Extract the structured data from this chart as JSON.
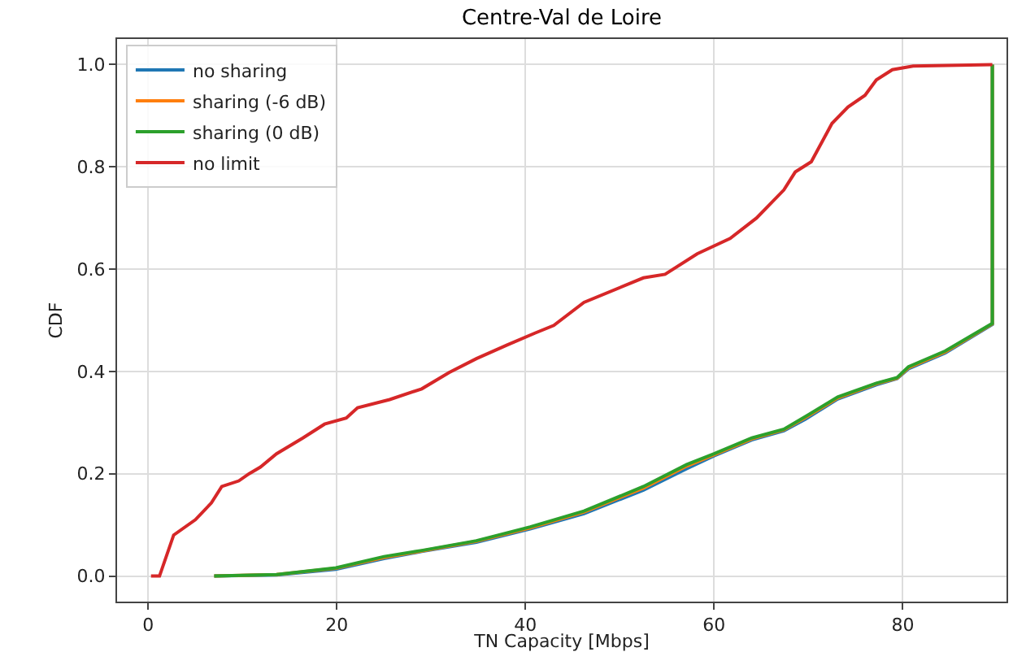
{
  "chart_data": {
    "type": "line",
    "title": "Centre-Val de Loire",
    "xlabel": "TN Capacity [Mbps]",
    "ylabel": "CDF",
    "xlim": [
      -3.3,
      91
    ],
    "ylim": [
      -0.05,
      1.05
    ],
    "xticks": [
      0,
      20,
      40,
      60,
      80
    ],
    "yticks": [
      {
        "value": 0,
        "label": "0.0"
      },
      {
        "value": 0.2,
        "label": "0.2"
      },
      {
        "value": 0.4,
        "label": "0.4"
      },
      {
        "value": 0.6,
        "label": "0.6"
      },
      {
        "value": 0.8,
        "label": "0.8"
      },
      {
        "value": 1,
        "label": "1.0"
      }
    ],
    "grid": true,
    "legend": "top left",
    "marker": "none",
    "line_style": "solid",
    "series": [
      {
        "name": "no sharing",
        "color": "#1f77b4",
        "x": [
          7,
          13.6,
          19.9,
          25,
          29,
          34.8,
          40.5,
          46.2,
          52.5,
          57.1,
          60,
          64,
          67.4,
          69.7,
          73.1,
          77.2,
          79.4,
          80.6,
          84.5,
          89.5,
          89.5
        ],
        "values": [
          0,
          0.002,
          0.013,
          0.034,
          0.048,
          0.066,
          0.092,
          0.122,
          0.168,
          0.21,
          0.235,
          0.266,
          0.284,
          0.307,
          0.346,
          0.374,
          0.386,
          0.405,
          0.436,
          0.492,
          1
        ]
      },
      {
        "name": "sharing (-6 dB)",
        "color": "#ff7f0e",
        "x": [
          7,
          13.6,
          19.9,
          25,
          29,
          34.8,
          40.5,
          46.2,
          52.5,
          57.1,
          60,
          64,
          67.4,
          69.7,
          73.1,
          77.2,
          79.4,
          80.6,
          84.5,
          89.5,
          89.5
        ],
        "values": [
          0,
          0.003,
          0.015,
          0.036,
          0.049,
          0.068,
          0.094,
          0.125,
          0.172,
          0.215,
          0.237,
          0.268,
          0.286,
          0.31,
          0.348,
          0.376,
          0.387,
          0.407,
          0.438,
          0.493,
          1
        ]
      },
      {
        "name": "sharing (0 dB)",
        "color": "#2ca02c",
        "x": [
          7,
          13.6,
          19.9,
          25,
          29,
          34.8,
          40.5,
          46.2,
          52.5,
          57.1,
          60,
          64,
          67.4,
          69.7,
          73.1,
          77.2,
          79.4,
          80.6,
          84.5,
          89.5,
          89.5
        ],
        "values": [
          0,
          0.003,
          0.016,
          0.038,
          0.05,
          0.069,
          0.096,
          0.127,
          0.175,
          0.218,
          0.239,
          0.27,
          0.287,
          0.312,
          0.35,
          0.377,
          0.388,
          0.409,
          0.44,
          0.494,
          1
        ]
      },
      {
        "name": "no limit",
        "color": "#d62728",
        "x": [
          0.3,
          1.2,
          2.7,
          5,
          6.7,
          7.8,
          9.6,
          10.7,
          11.9,
          13.6,
          16.4,
          18.7,
          21,
          22.2,
          25.6,
          29,
          31.9,
          34.8,
          38.1,
          41,
          43,
          46.2,
          52.5,
          54.8,
          58.2,
          61.7,
          64.5,
          67.4,
          68.6,
          70.3,
          72.5,
          74.2,
          76,
          77.2,
          78.9,
          81.1,
          89.5
        ],
        "values": [
          0,
          0,
          0.08,
          0.11,
          0.143,
          0.175,
          0.186,
          0.2,
          0.213,
          0.239,
          0.27,
          0.297,
          0.309,
          0.329,
          0.345,
          0.366,
          0.398,
          0.425,
          0.452,
          0.475,
          0.49,
          0.535,
          0.583,
          0.59,
          0.63,
          0.66,
          0.7,
          0.755,
          0.79,
          0.81,
          0.885,
          0.917,
          0.94,
          0.97,
          0.99,
          0.997,
          1
        ]
      }
    ]
  }
}
